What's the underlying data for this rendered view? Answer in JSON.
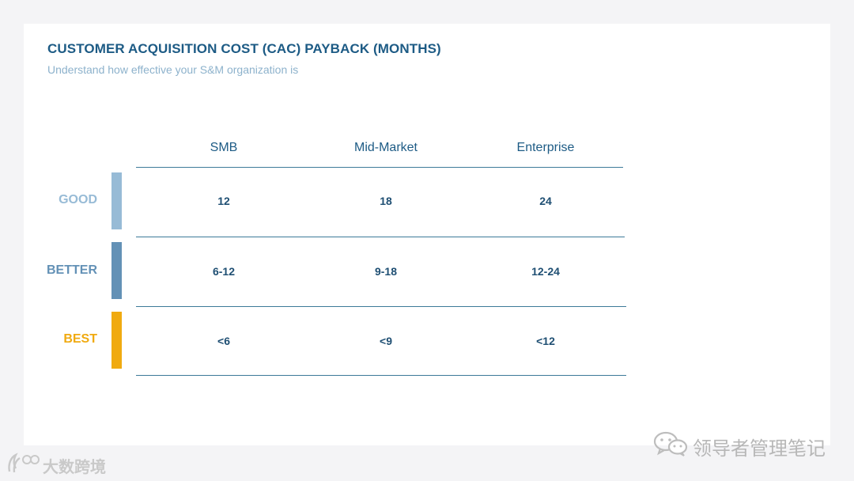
{
  "title": "CUSTOMER ACQUISITION COST (CAC) PAYBACK (MONTHS)",
  "subtitle": "Understand how effective your S&M organization is",
  "columns": [
    "SMB",
    "Mid-Market",
    "Enterprise"
  ],
  "rows": [
    {
      "label": "GOOD",
      "color": "#97bbd6",
      "values": [
        "12",
        "18",
        "24"
      ]
    },
    {
      "label": "BETTER",
      "color": "#6391b6",
      "values": [
        "6-12",
        "9-18",
        "12-24"
      ]
    },
    {
      "label": "BEST",
      "color": "#f0aa10",
      "values": [
        "<6",
        "<9",
        "<12"
      ]
    }
  ],
  "watermark_wechat": "领导者管理笔记",
  "watermark_brand": "大数跨境",
  "icons": {
    "wechat": "wechat-icon",
    "brand": "brand-logo-icon"
  }
}
